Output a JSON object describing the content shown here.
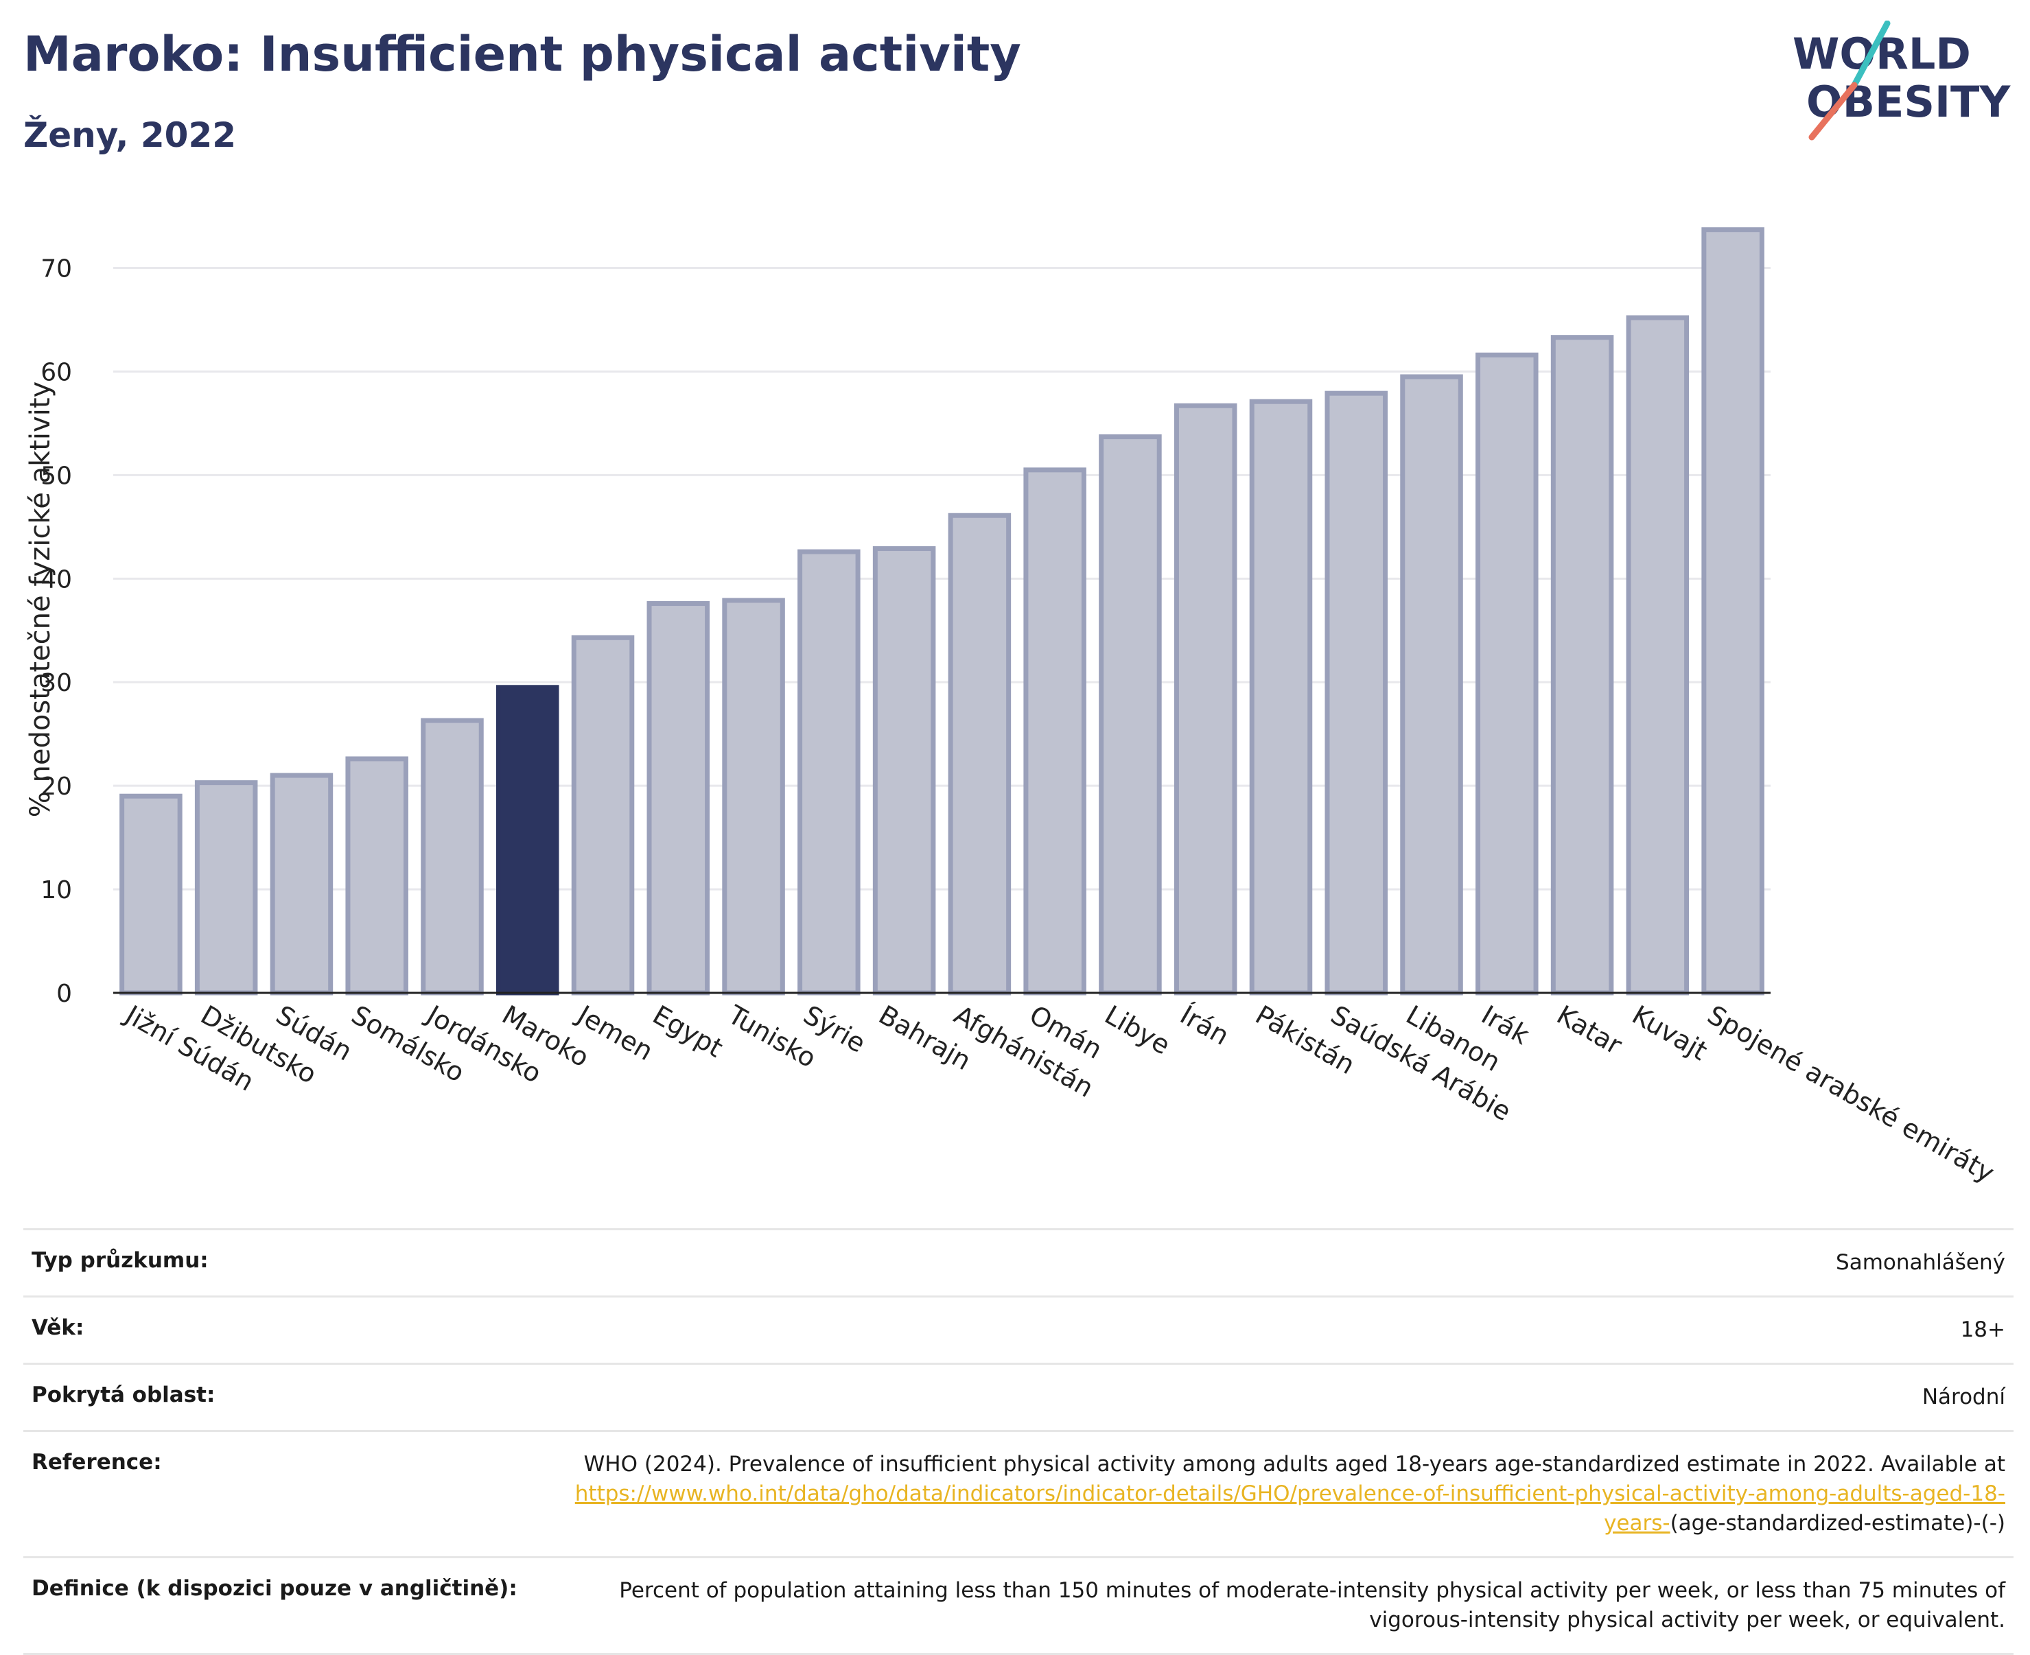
{
  "header": {
    "title": "Maroko: Insufficient physical activity",
    "subtitle": "Ženy, 2022",
    "logo_line1": "WORLD",
    "logo_line2": "OBESITY"
  },
  "chart_data": {
    "type": "bar",
    "categories": [
      "Jižní Súdán",
      "Džibutsko",
      "Súdán",
      "Somálsko",
      "Jordánsko",
      "Maroko",
      "Jemen",
      "Egypt",
      "Tunisko",
      "Sýrie",
      "Bahrajn",
      "Afghánistán",
      "Omán",
      "Libye",
      "Írán",
      "Pákistán",
      "Saúdská Arábie",
      "Libanon",
      "Irák",
      "Katar",
      "Kuvajt",
      "Spojené arabské emiráty"
    ],
    "values": [
      19.0,
      20.3,
      21.0,
      22.6,
      26.3,
      29.5,
      34.3,
      37.6,
      37.9,
      42.6,
      42.9,
      46.1,
      50.5,
      53.7,
      56.7,
      57.1,
      57.9,
      59.5,
      61.6,
      63.3,
      65.2,
      73.7
    ],
    "highlight": "Maroko",
    "ylabel": "% nedostatečné fyzické aktivity",
    "xlabel": "",
    "ylim": [
      0,
      76
    ],
    "yticks": [
      0,
      10,
      20,
      30,
      40,
      50,
      60,
      70
    ],
    "grid": true,
    "colors": {
      "bar": "#bfc2d0",
      "bar_border": "#9aa0ba",
      "highlight": "#2c3560"
    }
  },
  "meta": {
    "survey_label": "Typ průzkumu:",
    "survey_value": "Samonahlášený",
    "age_label": "Věk:",
    "age_value": "18+",
    "area_label": "Pokrytá oblast:",
    "area_value": "Národní",
    "reference_label": "Reference:",
    "reference_text": "WHO (2024). Prevalence of insufficient physical activity among adults aged 18-years age-standardized estimate in 2022. Available at",
    "reference_link": "https://www.who.int/data/gho/data/indicators/indicator-details/GHO/prevalence-of-insufficient-physical-activity-among-adults-aged-18-years-",
    "reference_suffix": "(age-standardized-estimate)-(-)",
    "definition_label": "Definice (k dispozici pouze v angličtině):",
    "definition_value": "Percent of population attaining less than 150 minutes of moderate-intensity physical activity per week, or less than 75 minutes of vigorous-intensity physical activity per week, or equivalent."
  }
}
